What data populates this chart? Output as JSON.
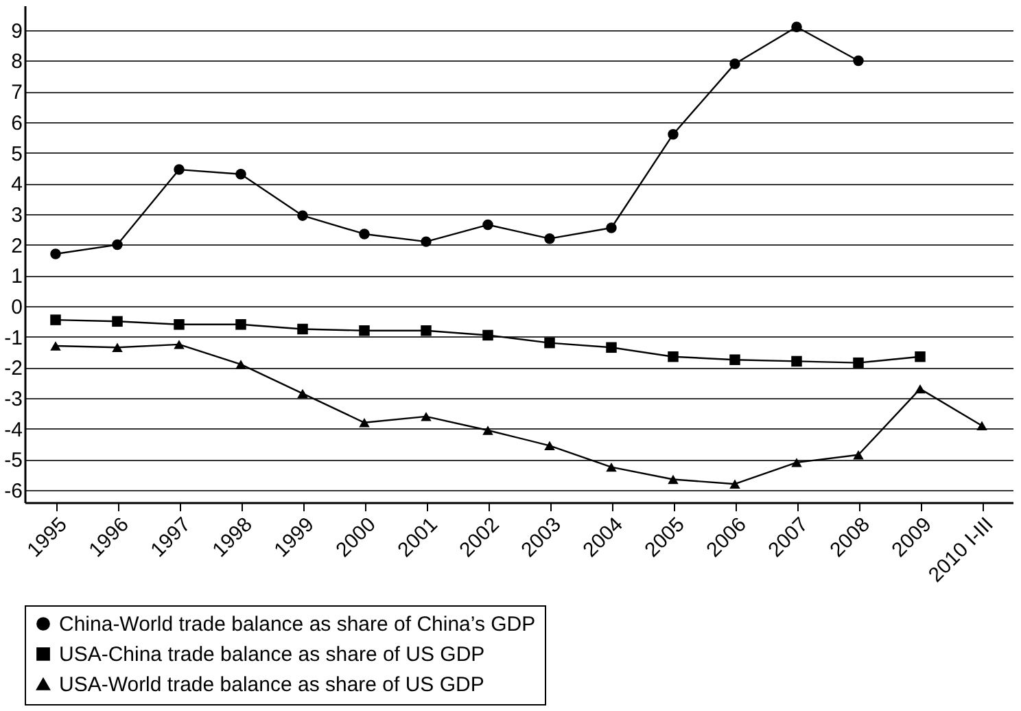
{
  "chart_data": {
    "type": "line",
    "categories": [
      "1995",
      "1996",
      "1997",
      "1998",
      "1999",
      "2000",
      "2001",
      "2002",
      "2003",
      "2004",
      "2005",
      "2006",
      "2007",
      "2008",
      "2009",
      "2010 I-III"
    ],
    "series": [
      {
        "name": "China-World trade balance as share of China’s GDP",
        "color": "#000000",
        "marker": "circle",
        "values": [
          1.7,
          2.0,
          4.45,
          4.3,
          2.95,
          2.35,
          2.1,
          2.65,
          2.2,
          2.55,
          5.6,
          7.9,
          9.1,
          8.0,
          null,
          null
        ]
      },
      {
        "name": "USA-China trade balance as share of US GDP",
        "color": "#000000",
        "marker": "square",
        "values": [
          -0.45,
          -0.5,
          -0.6,
          -0.6,
          -0.75,
          -0.8,
          -0.8,
          -0.95,
          -1.2,
          -1.35,
          -1.65,
          -1.75,
          -1.8,
          -1.85,
          -1.65,
          null
        ]
      },
      {
        "name": "USA-World trade balance as share of US GDP",
        "color": "#000000",
        "marker": "triangle",
        "values": [
          -1.3,
          -1.35,
          -1.25,
          -1.9,
          -2.85,
          -3.8,
          -3.6,
          -4.05,
          -4.55,
          -5.25,
          -5.65,
          -5.8,
          -5.1,
          -4.85,
          -2.7,
          -3.9
        ]
      }
    ],
    "ylim": [
      -6.4,
      9.8
    ],
    "yticks": [
      -6,
      -5,
      -4,
      -3,
      -2,
      -1,
      0,
      1,
      2,
      3,
      4,
      5,
      6,
      7,
      8,
      9
    ],
    "grid": "y",
    "legend": "bottom",
    "line_style": "solid"
  }
}
